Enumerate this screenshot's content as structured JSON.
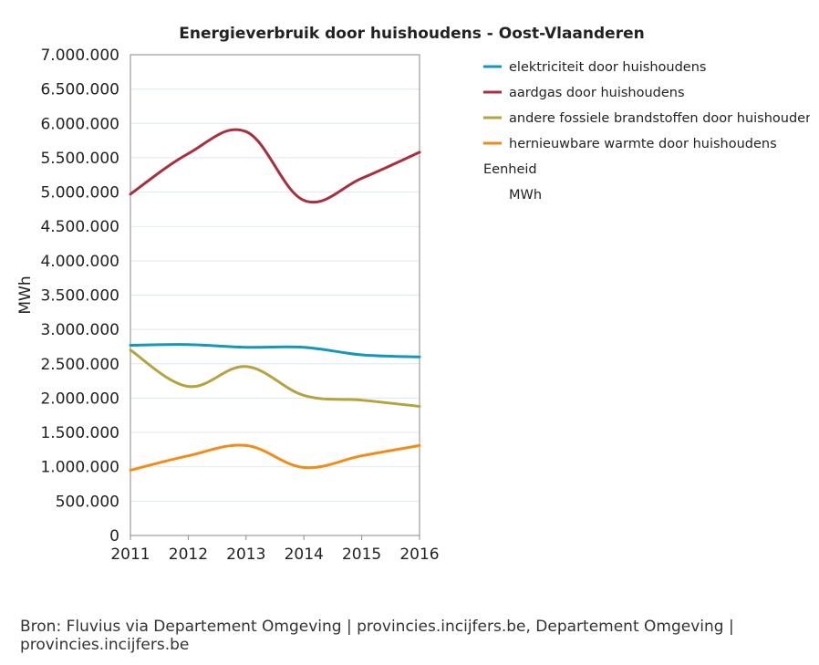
{
  "chart_data": {
    "type": "line",
    "title": "Energieverbruik door huishoudens - Oost-Vlaanderen",
    "xlabel": "",
    "ylabel": "MWh",
    "x": [
      "2011",
      "2012",
      "2013",
      "2014",
      "2015",
      "2016"
    ],
    "ylim": [
      0,
      7000000
    ],
    "yticks": [
      0,
      500000,
      1000000,
      1500000,
      2000000,
      2500000,
      3000000,
      3500000,
      4000000,
      4500000,
      5000000,
      5500000,
      6000000,
      6500000,
      7000000
    ],
    "ytick_labels": [
      "0",
      "500.000",
      "1.000.000",
      "1.500.000",
      "2.000.000",
      "2.500.000",
      "3.000.000",
      "3.500.000",
      "4.000.000",
      "4.500.000",
      "5.000.000",
      "5.500.000",
      "6.000.000",
      "6.500.000",
      "7.000.000"
    ],
    "grid": true,
    "legend_position": "right",
    "series": [
      {
        "name": "elektriciteit door huishoudens",
        "color": "#1597b8",
        "values": [
          2770000,
          2780000,
          2740000,
          2740000,
          2630000,
          2600000
        ]
      },
      {
        "name": "aardgas door huishoudens",
        "color": "#a8303e",
        "values": [
          4970000,
          5560000,
          5880000,
          4880000,
          5200000,
          5580000
        ]
      },
      {
        "name": "andere fossiele brandstoffen door huishoudens",
        "color": "#b5a33f",
        "values": [
          2700000,
          2170000,
          2460000,
          2040000,
          1970000,
          1880000
        ]
      },
      {
        "name": "hernieuwbare warmte door huishoudens",
        "color": "#f28c19",
        "values": [
          950000,
          1160000,
          1310000,
          990000,
          1160000,
          1310000
        ]
      }
    ],
    "unit_heading": "Eenheid",
    "unit_value": "MWh"
  },
  "footer": {
    "line1": "Bron: Fluvius via Departement Omgeving | provincies.incijfers.be, Departement Omgeving |",
    "line2": "provincies.incijfers.be"
  }
}
